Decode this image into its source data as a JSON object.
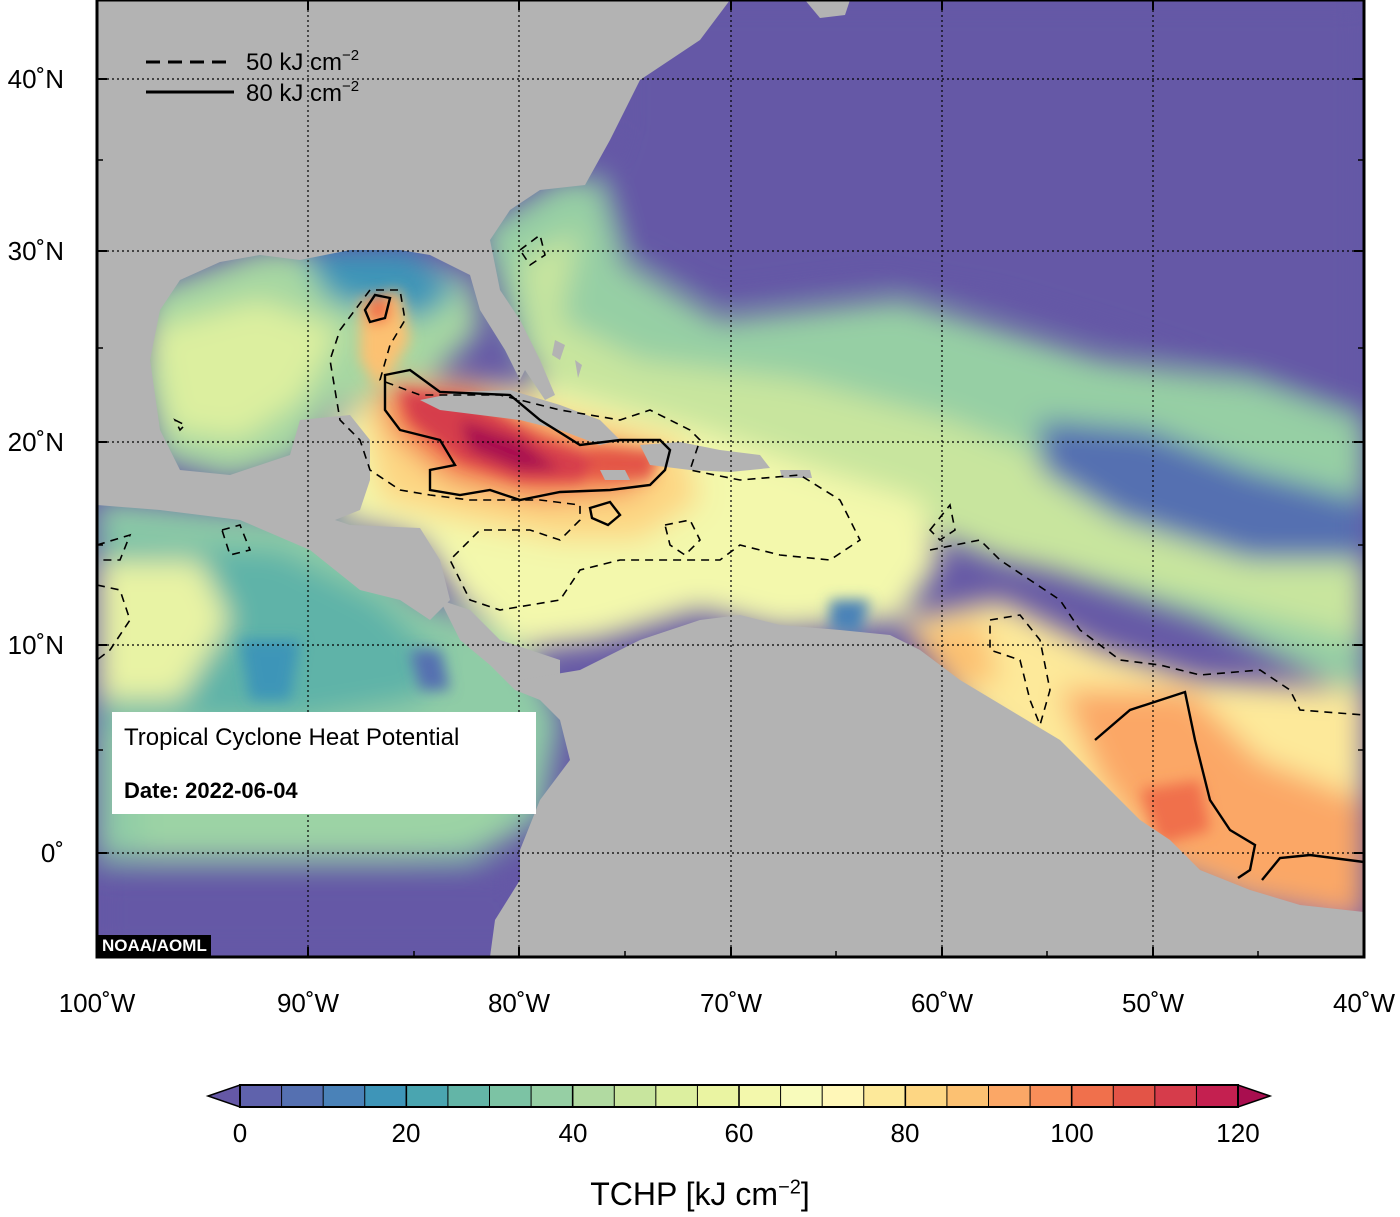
{
  "map": {
    "title": "Tropical Cyclone Heat Potential",
    "date_label": "Date: 2022-06-04",
    "credit": "NOAA/AOML",
    "extent": {
      "lon_min": -100,
      "lon_max": -40,
      "lat_min": -5,
      "lat_max": 45
    },
    "lon_ticks": [
      "100˚W",
      "90˚W",
      "80˚W",
      "70˚W",
      "60˚W",
      "50˚W",
      "40˚W"
    ],
    "lat_ticks": [
      "0˚",
      "10˚N",
      "20˚N",
      "30˚N",
      "40˚N"
    ],
    "gridlines": "dotted",
    "land_color": "#b3b3b3",
    "contour_legend": [
      {
        "style": "dashed",
        "value": "50",
        "unit": "kJ cm",
        "exponent": "−2"
      },
      {
        "style": "solid",
        "value": "80",
        "unit": "kJ cm",
        "exponent": "−2"
      }
    ]
  },
  "colorbar": {
    "title_main": "TCHP [kJ cm",
    "title_exp": "−2",
    "title_close": "]",
    "tick_labels": [
      "0",
      "20",
      "40",
      "60",
      "80",
      "100",
      "120"
    ],
    "min": 0,
    "max": 120,
    "step": 5,
    "extend": "both",
    "colors": [
      "#6558a6",
      "#5f62ac",
      "#5570b1",
      "#4a82b8",
      "#3e95b8",
      "#4aa5b0",
      "#63b5a7",
      "#7cc3a4",
      "#96cfa4",
      "#b1daa1",
      "#c8e59e",
      "#dcef9f",
      "#eaf4a2",
      "#f3f8ac",
      "#f8fbbb",
      "#fff7b8",
      "#fde99a",
      "#fdd683",
      "#fcc172",
      "#fba766",
      "#f88e59",
      "#f0704c",
      "#e35447",
      "#d63c4b",
      "#c42050",
      "#a90e4f"
    ]
  }
}
